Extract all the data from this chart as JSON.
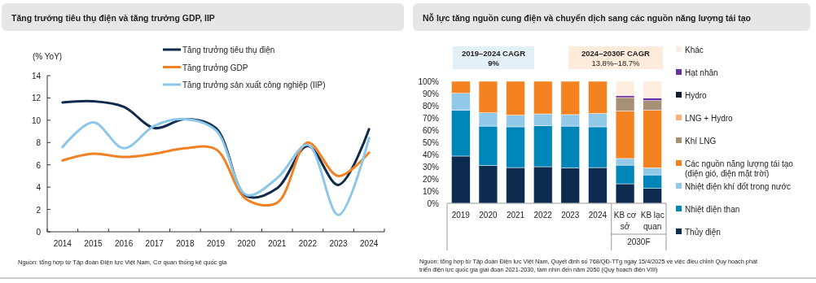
{
  "chart_data": [
    {
      "type": "line",
      "title": "Tăng trưởng tiêu thụ điện và tăng trưởng GDP, IIP",
      "ylabel": "(% YoY)",
      "categories": [
        "2014",
        "2015",
        "2016",
        "2017",
        "2018",
        "2019",
        "2020",
        "2021",
        "2022",
        "2023",
        "2024"
      ],
      "series": [
        {
          "name": "Tăng trưởng tiêu thụ điện",
          "color": "#0f2a4a",
          "values": [
            11.6,
            11.7,
            11.2,
            9.3,
            10.1,
            9.3,
            3.2,
            3.9,
            7.7,
            4.2,
            9.2
          ]
        },
        {
          "name": "Tăng trưởng GDP",
          "color": "#f28123",
          "values": [
            6.4,
            7.0,
            6.7,
            7.0,
            7.5,
            7.4,
            2.9,
            2.6,
            8.0,
            5.0,
            7.1
          ]
        },
        {
          "name": "Tăng trưởng sản xuất công nghiệp (IIP)",
          "color": "#8cc7ea",
          "values": [
            7.6,
            9.8,
            7.5,
            9.5,
            10.1,
            9.1,
            3.3,
            4.8,
            7.8,
            1.5,
            8.4
          ]
        }
      ],
      "ylim": [
        0,
        14
      ],
      "yticks": [
        0,
        2,
        4,
        6,
        8,
        10,
        12,
        14
      ],
      "grid": false,
      "legend": "top",
      "marker": "none",
      "line_style": "solid",
      "annotations": [
        "Nguồn: tổng hợp từ Tập đoàn Điện lực Việt Nam, Cơ quan thống kê quốc gia"
      ]
    },
    {
      "type": "bar",
      "stacked": true,
      "title": "Nỗ lực tăng nguồn cung điện và chuyển dịch sang các nguồn năng lượng tái tạo",
      "categories": [
        "2019",
        "2020",
        "2021",
        "2022",
        "2023",
        "2024",
        "KB cơ sở",
        "KB lạc quan"
      ],
      "series": [
        {
          "name": "Thủy điện",
          "color": "#0d2b4e",
          "values": [
            38.7,
            30.9,
            29.3,
            30.0,
            28.9,
            29.3,
            16.0,
            12.2
          ]
        },
        {
          "name": "Nhiệt điện than",
          "color": "#0085b8",
          "values": [
            37.7,
            32.4,
            33.4,
            33.6,
            34.4,
            33.4,
            15.3,
            11.1
          ]
        },
        {
          "name": "Nhiệt điện khí đốt trong nước",
          "color": "#92c9e8",
          "values": [
            13.8,
            10.9,
            9.5,
            9.7,
            9.4,
            10.9,
            5.4,
            5.8
          ]
        },
        {
          "name": "Các nguồn năng lượng tái tạo (điện gió, điện mặt trời)",
          "color": "#f58220",
          "values": [
            9.8,
            25.8,
            27.8,
            26.7,
            27.3,
            26.4,
            38.9,
            47.1
          ]
        },
        {
          "name": "Khí LNG",
          "color": "#a89077",
          "values": [
            0,
            0,
            0,
            0,
            0,
            0,
            11.1,
            8.0
          ]
        },
        {
          "name": "LNG + Hydro",
          "color": "#f7b27a",
          "values": [
            0,
            0,
            0,
            0,
            0,
            0,
            0,
            0
          ]
        },
        {
          "name": "Hydro",
          "color": "#0d1e33",
          "values": [
            0,
            0,
            0,
            0,
            0,
            0,
            0,
            0
          ]
        },
        {
          "name": "Hạt nhân",
          "color": "#6a2fa0",
          "values": [
            0,
            0,
            0,
            0,
            0,
            0,
            1.7,
            2.2
          ]
        },
        {
          "name": "Khác",
          "color": "#fdeee0",
          "values": [
            0,
            0,
            0,
            0,
            0,
            0,
            11.6,
            13.6
          ]
        }
      ],
      "ylim": [
        0,
        100
      ],
      "yticks": [
        {
          "value": 0,
          "label": "0%"
        },
        {
          "value": 10,
          "label": "10%"
        },
        {
          "value": 20,
          "label": "20%"
        },
        {
          "value": 30,
          "label": "30%"
        },
        {
          "value": 40,
          "label": "40%"
        },
        {
          "value": 50,
          "label": "50%"
        },
        {
          "value": 60,
          "label": "60%"
        },
        {
          "value": 70,
          "label": "70%"
        },
        {
          "value": 80,
          "label": "80%"
        },
        {
          "value": 90,
          "label": "90%"
        },
        {
          "value": 100,
          "label": "100%"
        }
      ],
      "grid": false,
      "legend": "right",
      "annotations": [
        "2019–2024 CAGR",
        "9%",
        "2024–2030F CAGR",
        "13.8%–18.7%",
        "2030F",
        "Nguồn: tổng hợp từ Tập đoàn Điện lực Việt Nam, Quyết định số 768/QĐ-TTg ngày 15/4/2025 về việc điều chỉnh Quy hoạch phát triển điện lực quốc gia giai đoạn 2021-2030, tầm nhìn đến năm 2050 (Quy hoạch điện VIII)"
      ]
    }
  ]
}
